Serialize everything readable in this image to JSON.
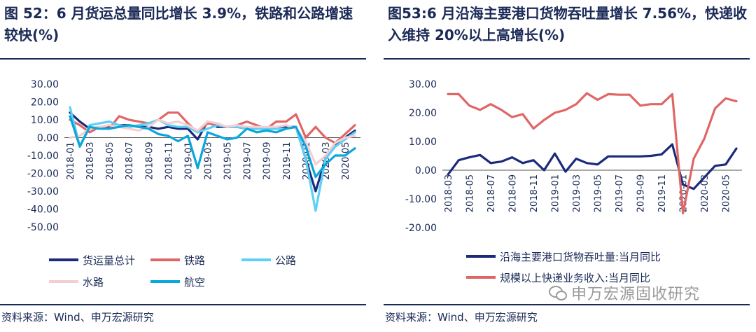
{
  "left": {
    "title": "图 52：6 月货运总量同比增长 3.9%，铁路和公路增速较快(%)",
    "source": "资料来源：Wind、申万宏源研究"
  },
  "right": {
    "title": "图53:6 月沿海主要港口货物吞吐量增长 7.56%，快递收入维持 20%以上高增长(%)",
    "source": "资料来源：Wind、申万宏源研究",
    "watermark": "申万宏源固收研究",
    "watermark_icon": "wechat-icon"
  },
  "chart_data": [
    {
      "type": "line",
      "ylim": [
        -50,
        30
      ],
      "yticks": [
        "30.00",
        "20.00",
        "10.00",
        "0.00",
        "-10.00",
        "-20.00",
        "-30.00",
        "-40.00",
        "-50.00"
      ],
      "ytick_values": [
        30,
        20,
        10,
        0,
        -10,
        -20,
        -30,
        -40,
        -50
      ],
      "x": [
        "2018-01",
        "2018-02",
        "2018-03",
        "2018-04",
        "2018-05",
        "2018-06",
        "2018-07",
        "2018-08",
        "2018-09",
        "2018-10",
        "2018-11",
        "2018-12",
        "2019-01",
        "2019-02",
        "2019-03",
        "2019-04",
        "2019-05",
        "2019-06",
        "2019-07",
        "2019-08",
        "2019-09",
        "2019-10",
        "2019-11",
        "2019-12",
        "2020-01",
        "2020-02",
        "2020-03",
        "2020-04",
        "2020-05",
        "2020-06"
      ],
      "xtick_labels": [
        "2018-01",
        "2018-03",
        "2018-05",
        "2018-07",
        "2018-09",
        "2018-11",
        "2019-01",
        "2019-03",
        "2019-05",
        "2019-07",
        "2019-09",
        "2019-11",
        "2020-01",
        "2020-03",
        "2020-05"
      ],
      "series": [
        {
          "name": "货运量总计",
          "color": "#1b2a7a",
          "values": [
            14,
            9,
            5,
            6,
            6,
            7,
            7,
            6,
            6,
            5,
            6,
            5,
            5,
            -1,
            9,
            6,
            6,
            6,
            5,
            5,
            5,
            5,
            6,
            6,
            -12,
            -30,
            -12,
            -4,
            0,
            3.9
          ]
        },
        {
          "name": "铁路",
          "color": "#e06666",
          "values": [
            10,
            7,
            3,
            6,
            5,
            12,
            10,
            9,
            8,
            10,
            14,
            14,
            8,
            3,
            8,
            7,
            6,
            7,
            9,
            7,
            5,
            9,
            9,
            13,
            0,
            6,
            0,
            -3,
            2,
            7
          ]
        },
        {
          "name": "公路",
          "color": "#5ed0f5",
          "values": [
            17,
            -5,
            7,
            8,
            9,
            7,
            6,
            7,
            8,
            10,
            7,
            6,
            6,
            3,
            5,
            7,
            6,
            6,
            5,
            5,
            5,
            5,
            5,
            6,
            -12,
            -41,
            -12,
            -5,
            -1,
            3
          ]
        },
        {
          "name": "水路",
          "color": "#f4cfd2",
          "values": [
            0,
            1,
            5,
            6,
            7,
            6,
            5,
            4,
            6,
            10,
            8,
            9,
            7,
            4,
            9,
            8,
            6,
            7,
            6,
            6,
            6,
            6,
            7,
            5,
            -2,
            -15,
            -10,
            -3,
            0,
            1
          ]
        },
        {
          "name": "航空",
          "color": "#0aa6dc",
          "values": [
            12,
            -5,
            6,
            5,
            5,
            6,
            7,
            6,
            5,
            2,
            1,
            -2,
            1,
            -17,
            3,
            1,
            -1,
            0,
            5,
            3,
            4,
            3,
            5,
            6,
            -5,
            -22,
            -15,
            -10,
            -10,
            -6
          ]
        }
      ]
    },
    {
      "type": "line",
      "ylim": [
        -20,
        30
      ],
      "yticks": [
        "30.00",
        "20.00",
        "10.00",
        "0.00",
        "-10.00",
        "-20.00"
      ],
      "ytick_values": [
        30,
        20,
        10,
        0,
        -10,
        -20
      ],
      "x": [
        "2018-03",
        "2018-04",
        "2018-05",
        "2018-06",
        "2018-07",
        "2018-08",
        "2018-09",
        "2018-10",
        "2018-11",
        "2018-12",
        "2019-01",
        "2019-02",
        "2019-03",
        "2019-04",
        "2019-05",
        "2019-06",
        "2019-07",
        "2019-08",
        "2019-09",
        "2019-10",
        "2019-11",
        "2019-12",
        "2020-01",
        "2020-02",
        "2020-03",
        "2020-04",
        "2020-05",
        "2020-06"
      ],
      "xtick_labels": [
        "2018-03",
        "2018-05",
        "2018-07",
        "2018-09",
        "2018-11",
        "2019-01",
        "2019-03",
        "2019-05",
        "2019-07",
        "2019-09",
        "2019-11",
        "2020-01",
        "2020-03",
        "2020-05"
      ],
      "series": [
        {
          "name": "沿海主要港口货物吞吐量:当月同比",
          "color": "#1b2a7a",
          "values": [
            -1.5,
            3.5,
            4.5,
            5.3,
            2.5,
            3,
            4.5,
            2.5,
            3.5,
            0,
            5.8,
            -0.5,
            4,
            2.5,
            2,
            4.8,
            4.8,
            4.8,
            4.8,
            5,
            5.5,
            9,
            -5,
            -6.5,
            -2.5,
            1.5,
            2,
            7.56
          ]
        },
        {
          "name": "规模以上快递业务收入:当月同比",
          "color": "#e06666",
          "values": [
            26.5,
            26.5,
            22.5,
            21,
            23,
            21,
            18.5,
            19.5,
            14.5,
            17.5,
            20,
            21,
            23,
            26.8,
            24.5,
            26.5,
            26.3,
            26.3,
            22.5,
            23,
            23,
            26.5,
            -15,
            4,
            11,
            21.5,
            25,
            24
          ]
        }
      ]
    }
  ]
}
